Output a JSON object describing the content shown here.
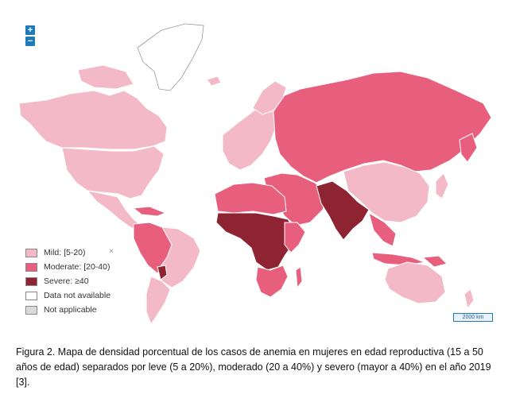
{
  "map": {
    "zoom_in_label": "+",
    "zoom_out_label": "−",
    "scale_label": "2000 km",
    "colors": {
      "mild": "#f3b9c6",
      "moderate": "#e85f7d",
      "severe": "#8e2432",
      "not_available": "#ffffff",
      "not_applicable": "#d9d9d9",
      "border": "#ffffff"
    }
  },
  "legend": {
    "close_icon": "×",
    "items": [
      {
        "label": "Mild: [5-20)",
        "color": "#f3b9c6"
      },
      {
        "label": "Moderate: [20-40)",
        "color": "#e85f7d"
      },
      {
        "label": "Severe: ≥40",
        "color": "#8e2432"
      },
      {
        "label": "Data not available",
        "color": "#ffffff"
      },
      {
        "label": "Not applicable",
        "color": "#d9d9d9"
      }
    ]
  },
  "caption": "Figura 2. Mapa de densidad porcentual de los casos de anemia en mujeres en edad reproductiva (15 a 50 años de edad) separados por leve (5 a 20%), moderado (20 a 40%) y severo (mayor a 40%) en el año 2019 [3]."
}
